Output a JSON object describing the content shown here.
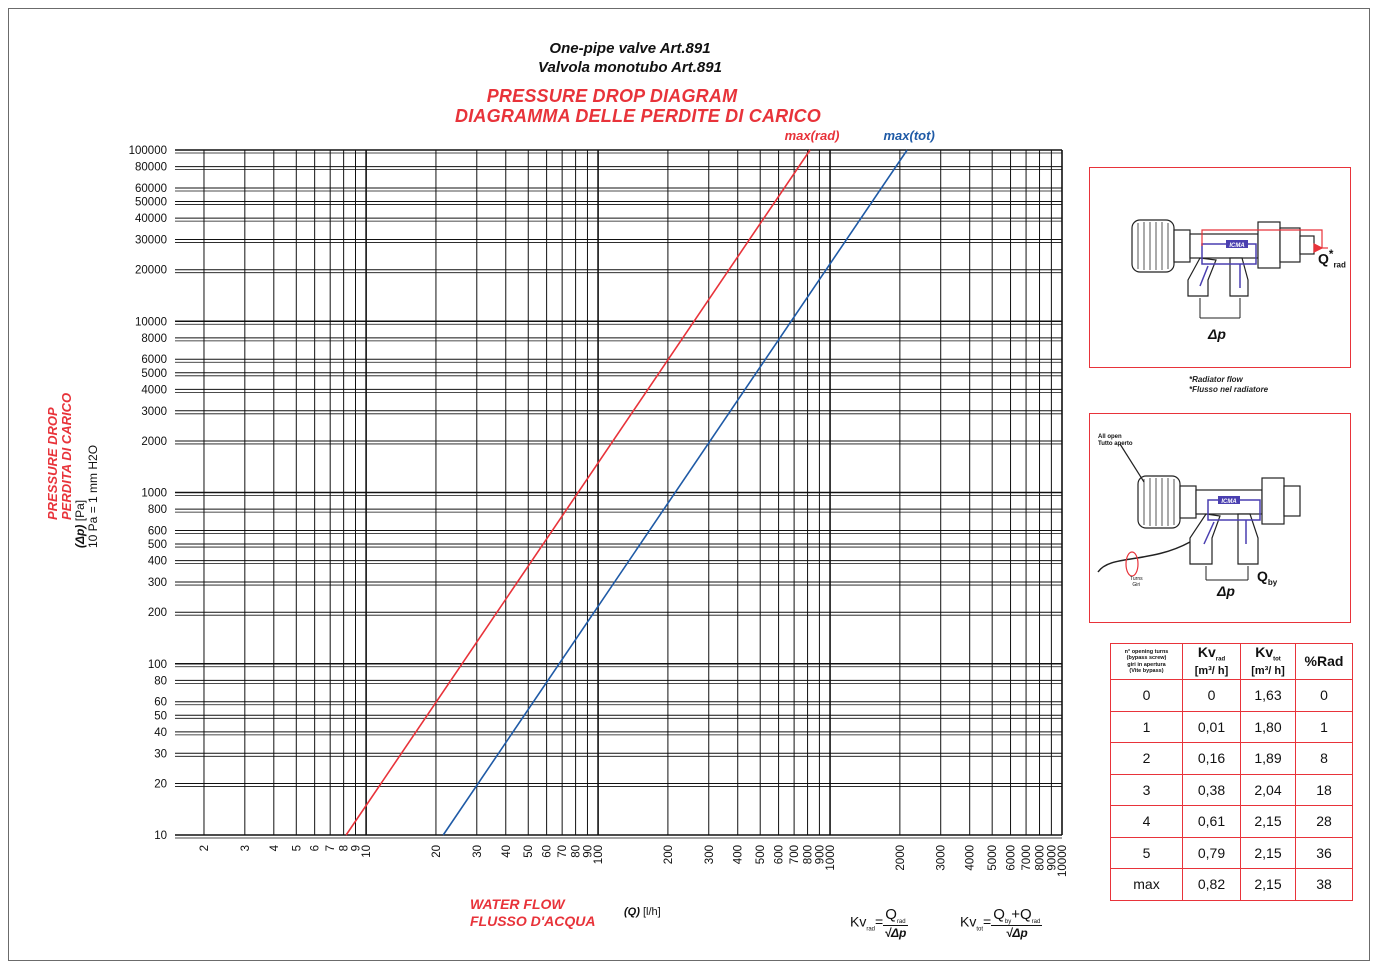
{
  "titles": {
    "en": "One-pipe valve Art.891",
    "it": "Valvola monotubo Art.891",
    "diagram_en": "PRESSURE DROP DIAGRAM",
    "diagram_it": "DIAGRAMMA DELLE PERDITE DI CARICO"
  },
  "axes": {
    "y_red_1": "PRESSURE DROP",
    "y_red_2": "PERDITA DI CARICO",
    "y_symbol": "(Δp)",
    "y_unit": "[Pa]",
    "y_note": "10 Pa = 1 mm  H2O",
    "x_red_1": "WATER FLOW",
    "x_red_2": "FLUSSO D'ACQUA",
    "x_symbol": "(Q)",
    "x_unit": "[l/h]"
  },
  "colors": {
    "accent": "#e8333a",
    "blue": "#1f5aa6",
    "grid": "#111111"
  },
  "chart_data": {
    "type": "line",
    "x_scale": "log",
    "y_scale": "log",
    "xlim": [
      1.5,
      10000
    ],
    "ylim": [
      10,
      100000
    ],
    "x_ticks": [
      2,
      3,
      4,
      5,
      6,
      7,
      8,
      9,
      10,
      20,
      30,
      40,
      50,
      60,
      70,
      80,
      90,
      100,
      200,
      300,
      400,
      500,
      600,
      700,
      800,
      900,
      1000,
      2000,
      3000,
      4000,
      5000,
      6000,
      7000,
      8000,
      9000,
      10000
    ],
    "y_ticks": [
      10,
      20,
      30,
      40,
      50,
      60,
      80,
      100,
      200,
      300,
      400,
      500,
      600,
      800,
      1000,
      2000,
      3000,
      4000,
      5000,
      6000,
      8000,
      10000,
      20000,
      30000,
      40000,
      50000,
      60000,
      80000,
      100000
    ],
    "y_tick_labels": [
      "10",
      "20",
      "30",
      "40",
      "50",
      "60",
      "80",
      "100",
      "200",
      "300",
      "400",
      "500",
      "600",
      "800",
      "1000",
      "2000",
      "3000",
      "4000",
      "5000",
      "6000",
      "8000",
      "10000",
      "20000",
      "30000",
      "40000",
      "50000",
      "60000",
      "80000",
      "100000"
    ],
    "xlabel": "WATER FLOW / FLUSSO D'ACQUA (Q) [l/h]",
    "ylabel": "PRESSURE DROP / PERDITA DI CARICO (Δp) [Pa]",
    "grid": true,
    "series": [
      {
        "name": "max(rad)",
        "color": "#e8333a",
        "x": [
          8.2,
          820
        ],
        "y": [
          10,
          100000
        ]
      },
      {
        "name": "max(tot)",
        "color": "#1f5aa6",
        "x": [
          21.5,
          2150
        ],
        "y": [
          10,
          100000
        ]
      }
    ]
  },
  "diagrams": {
    "q_rad": "Q",
    "q_rad_sub": "rad",
    "dp": "Δp",
    "note_1": "*Radiator flow",
    "note_2": "*Flusso nel radiatore",
    "all_open_1": "All open",
    "all_open_2": "Tutto aperto",
    "turns_1": "Turns",
    "turns_2": "Giri",
    "q_by": "Q",
    "q_by_sub": "by",
    "brand": "ICMA"
  },
  "table": {
    "h0_1": "n° opening turns",
    "h0_2": "(bypass screw)",
    "h0_3": "giri in apertura",
    "h0_4": "(Vite bypass)",
    "h1": "Kv",
    "h1_sub": "rad",
    "h2": "Kv",
    "h2_sub": "tot",
    "unit": "[m³/ h]",
    "h3": "%Rad",
    "rows": [
      [
        "0",
        "0",
        "1,63",
        "0"
      ],
      [
        "1",
        "0,01",
        "1,80",
        "1"
      ],
      [
        "2",
        "0,16",
        "1,89",
        "8"
      ],
      [
        "3",
        "0,38",
        "2,04",
        "18"
      ],
      [
        "4",
        "0,61",
        "2,15",
        "28"
      ],
      [
        "5",
        "0,79",
        "2,15",
        "36"
      ],
      [
        "max",
        "0,82",
        "2,15",
        "38"
      ]
    ]
  },
  "formulas": {
    "kv": "Kv",
    "rad": "rad",
    "tot": "tot",
    "eq": "=",
    "q": "Q",
    "plus": "+",
    "by": "by",
    "sqrt_dp": "√Δp"
  }
}
